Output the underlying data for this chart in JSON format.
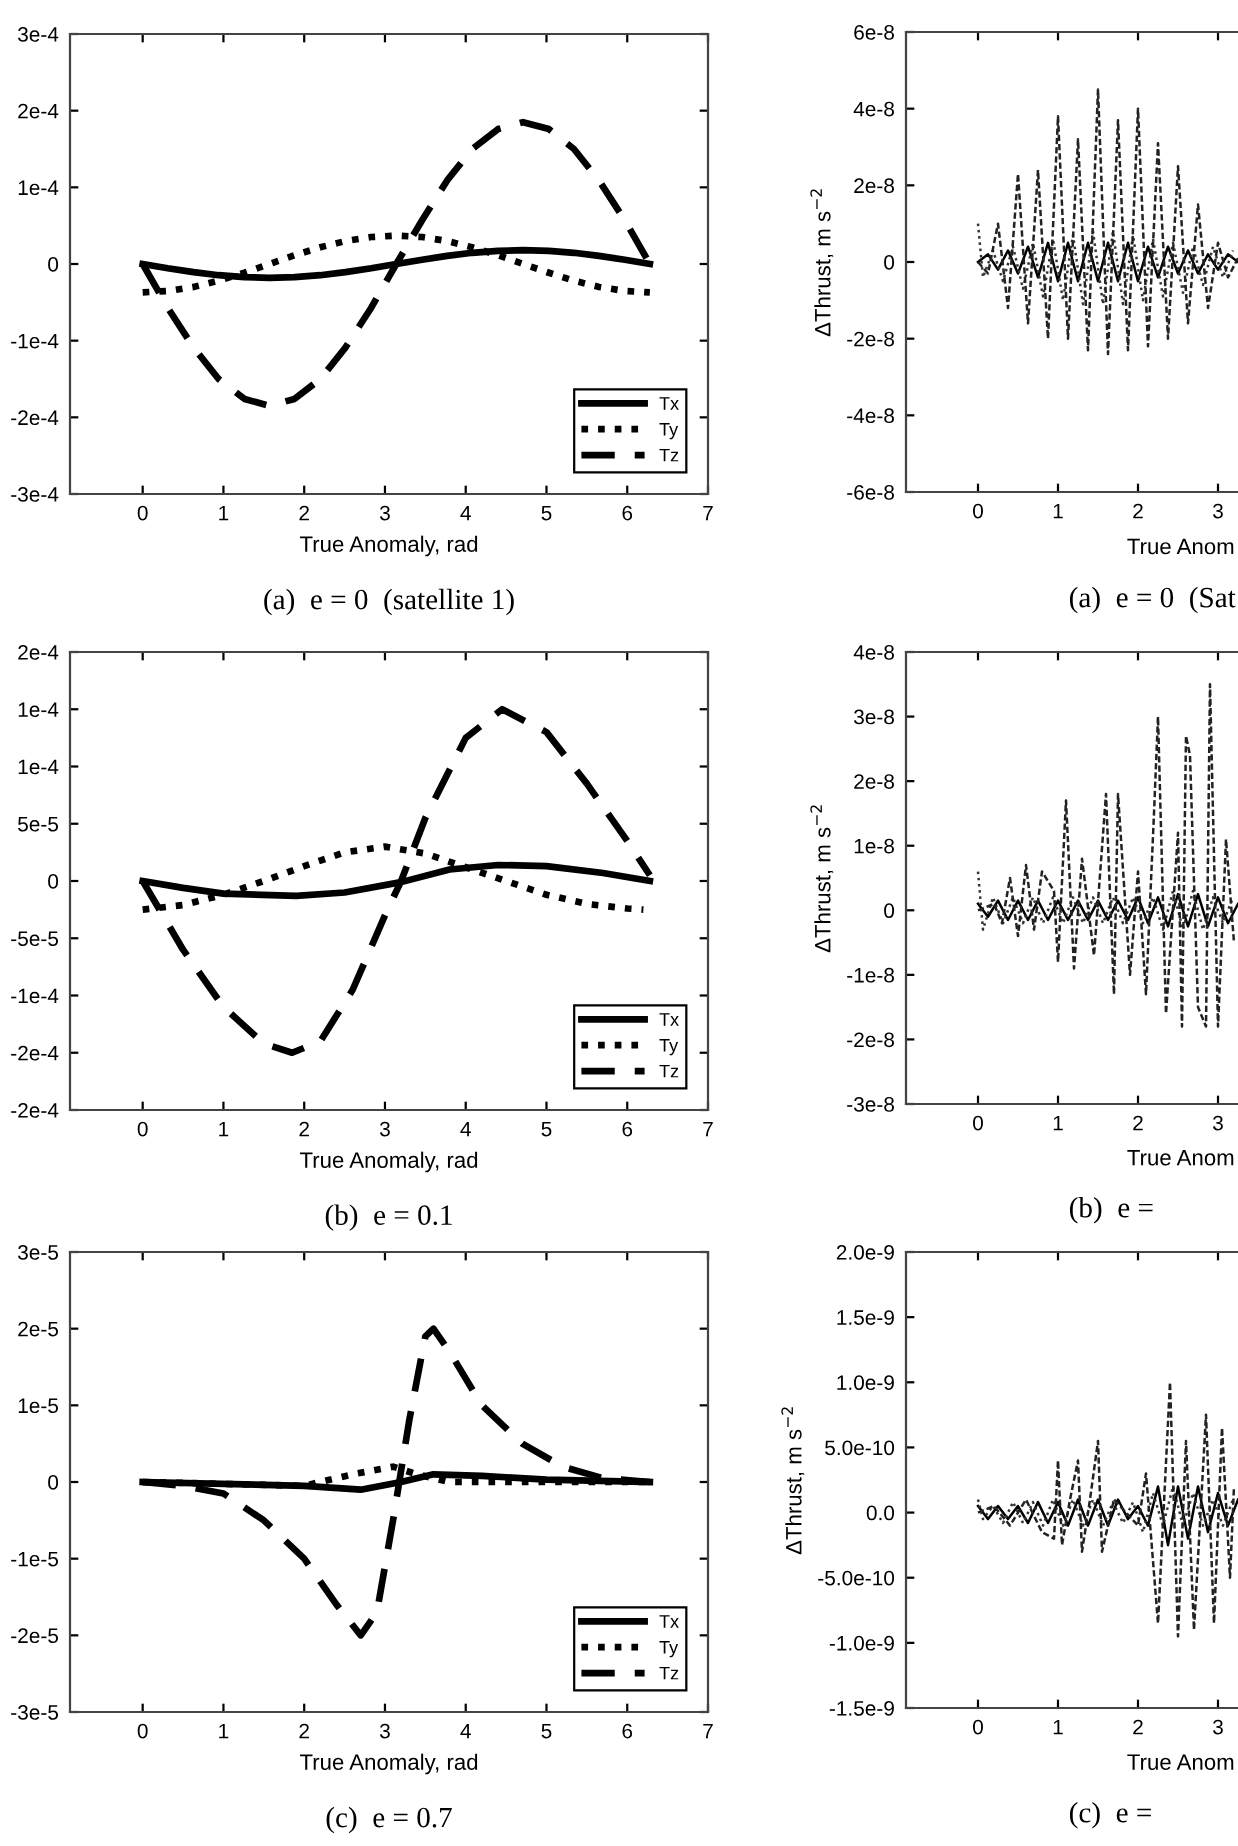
{
  "chart_data": [
    {
      "type": "line",
      "xlabel": "True Anomaly, rad",
      "xlim": [
        -0.9,
        7
      ],
      "xticks": [
        0,
        1,
        2,
        3,
        4,
        5,
        6,
        7
      ],
      "ylim": [
        -0.0003,
        0.0003
      ],
      "yticks": [
        {
          "value": -0.0003,
          "label": "-3e-4"
        },
        {
          "value": -0.0002,
          "label": "-2e-4"
        },
        {
          "value": -0.0001,
          "label": "-1e-4"
        },
        0,
        {
          "value": 0.0001,
          "label": "1e-4"
        },
        {
          "value": 0.0002,
          "label": "2e-4"
        },
        {
          "value": 0.0003,
          "label": "3e-4"
        }
      ],
      "legend": "bottom right",
      "annotations": [
        "(a)  e = 0  (satellite 1)"
      ],
      "series": [
        {
          "name": "Tx",
          "color": "#000000",
          "line_style": "solid",
          "x": [
            0,
            0.31,
            0.63,
            0.94,
            1.26,
            1.57,
            1.88,
            2.2,
            2.51,
            2.83,
            3.14,
            3.46,
            3.77,
            4.08,
            4.4,
            4.71,
            5.03,
            5.34,
            5.65,
            5.97,
            6.28
          ],
          "values": [
            0,
            -5.6e-06,
            -1.06e-05,
            -1.46e-05,
            -1.71e-05,
            -1.8e-05,
            -1.71e-05,
            -1.46e-05,
            -1.06e-05,
            -5.6e-06,
            0,
            5.6e-06,
            1.06e-05,
            1.46e-05,
            1.71e-05,
            1.8e-05,
            1.71e-05,
            1.46e-05,
            1.06e-05,
            5.6e-06,
            0
          ]
        },
        {
          "name": "Ty",
          "color": "#000000",
          "line_style": "dotted",
          "x": [
            0,
            0.31,
            0.63,
            0.94,
            1.26,
            1.57,
            1.88,
            2.2,
            2.51,
            2.83,
            3.14,
            3.46,
            3.77,
            4.08,
            4.4,
            4.71,
            5.03,
            5.34,
            5.65,
            5.97,
            6.28
          ],
          "values": [
            -3.7e-05,
            -3.52e-05,
            -2.99e-05,
            -2.18e-05,
            -1.14e-05,
            0,
            1.14e-05,
            2.18e-05,
            2.99e-05,
            3.52e-05,
            3.7e-05,
            3.52e-05,
            2.99e-05,
            2.18e-05,
            1.14e-05,
            0,
            -1.14e-05,
            -2.18e-05,
            -2.99e-05,
            -3.52e-05,
            -3.7e-05
          ]
        },
        {
          "name": "Tz",
          "color": "#000000",
          "line_style": "dashed",
          "x": [
            0,
            0.31,
            0.63,
            0.94,
            1.26,
            1.57,
            1.88,
            2.2,
            2.51,
            2.83,
            3.14,
            3.46,
            3.77,
            4.08,
            4.4,
            4.71,
            5.03,
            5.34,
            5.65,
            5.97,
            6.28
          ],
          "values": [
            0,
            -5.7e-05,
            -0.000109,
            -0.00015,
            -0.000176,
            -0.000185,
            -0.000176,
            -0.00015,
            -0.000109,
            -5.7e-05,
            0,
            5.7e-05,
            0.000109,
            0.00015,
            0.000176,
            0.000185,
            0.000176,
            0.00015,
            0.000109,
            5.7e-05,
            0
          ]
        }
      ]
    },
    {
      "type": "line",
      "xlabel": "True Anom",
      "ylabel": "ΔThrust, m s$^{−2}$",
      "xlim": [
        -0.9,
        3.25
      ],
      "xticks": [
        0,
        1,
        2,
        3
      ],
      "ylim": [
        -6e-08,
        6e-08
      ],
      "yticks": [
        {
          "value": -6e-08,
          "label": "-6e-8"
        },
        {
          "value": -4e-08,
          "label": "-4e-8"
        },
        {
          "value": -2e-08,
          "label": "-2e-8"
        },
        0,
        {
          "value": 2e-08,
          "label": "2e-8"
        },
        {
          "value": 4e-08,
          "label": "4e-8"
        },
        {
          "value": 6e-08,
          "label": "6e-8"
        }
      ],
      "annotations": [
        "(a)  e = 0  (Sat"
      ],
      "series": [
        {
          "color": "#000000",
          "line_style": "solid",
          "x": [
            0,
            0.125,
            0.25,
            0.375,
            0.5,
            0.625,
            0.75,
            0.875,
            1.0,
            1.125,
            1.25,
            1.375,
            1.5,
            1.625,
            1.75,
            1.875,
            2.0,
            2.125,
            2.25,
            2.375,
            2.5,
            2.625,
            2.75,
            2.875,
            3.0,
            3.125,
            3.25
          ],
          "values": [
            0,
            2e-09,
            -2e-09,
            3e-09,
            -3e-09,
            4e-09,
            -4e-09,
            5e-09,
            -5e-09,
            5e-09,
            -5e-09,
            5e-09,
            -5e-09,
            5e-09,
            -5e-09,
            5e-09,
            -5e-09,
            4e-09,
            -4e-09,
            4e-09,
            -3e-09,
            3e-09,
            -3e-09,
            2e-09,
            -2e-09,
            2e-09,
            0
          ]
        },
        {
          "color": "#333333",
          "line_style": "dotted",
          "x": [
            0,
            0.0625,
            0.1875,
            0.3125,
            0.4375,
            0.5625,
            0.6875,
            0.8125,
            0.9375,
            1.0625,
            1.1875,
            1.3125,
            1.4375,
            1.5625,
            1.6875,
            1.8125,
            1.9375,
            2.0625,
            2.1875,
            2.3125,
            2.4375,
            2.5625,
            2.6875,
            2.8125,
            2.9375,
            3.0625,
            3.1875
          ],
          "values": [
            1e-08,
            -4e-09,
            3e-09,
            -5e-09,
            4e-09,
            -7e-09,
            5e-09,
            -9e-09,
            6e-09,
            -1e-08,
            7e-09,
            -1.1e-08,
            8e-09,
            -1.1e-08,
            8e-09,
            -1.1e-08,
            7e-09,
            -1e-08,
            6e-09,
            -9e-09,
            5e-09,
            -8e-09,
            4e-09,
            -6e-09,
            4e-09,
            -4e-09,
            3e-09
          ]
        },
        {
          "color": "#222222",
          "line_style": "dashed",
          "x": [
            0,
            0.125,
            0.25,
            0.375,
            0.5,
            0.625,
            0.75,
            0.875,
            1.0,
            1.125,
            1.25,
            1.375,
            1.5,
            1.625,
            1.75,
            1.875,
            2.0,
            2.125,
            2.25,
            2.375,
            2.5,
            2.625,
            2.75,
            2.875,
            3.0,
            3.125,
            3.25
          ],
          "values": [
            0,
            -3e-09,
            1e-08,
            -1.2e-08,
            2.3e-08,
            -1.6e-08,
            2.4e-08,
            -2e-08,
            3.8e-08,
            -2e-08,
            3.2e-08,
            -2.3e-08,
            4.5e-08,
            -2.4e-08,
            3.7e-08,
            -2.3e-08,
            4e-08,
            -2.2e-08,
            3.1e-08,
            -2e-08,
            2.5e-08,
            -1.6e-08,
            1.5e-08,
            -1.2e-08,
            5e-09,
            -4e-09,
            1e-09
          ]
        }
      ]
    },
    {
      "type": "line",
      "xlabel": "True Anomaly, rad",
      "xlim": [
        -0.9,
        7
      ],
      "xticks": [
        0,
        1,
        2,
        3,
        4,
        5,
        6,
        7
      ],
      "ylim": [
        -0.0002,
        0.0002
      ],
      "yticks": [
        {
          "value": -0.0002,
          "label": "-2e-4"
        },
        {
          "value": -0.00015,
          "label": "-2e-4"
        },
        {
          "value": -0.0001,
          "label": "-1e-4"
        },
        {
          "value": -5e-05,
          "label": "-5e-5"
        },
        0,
        {
          "value": 5e-05,
          "label": "5e-5"
        },
        {
          "value": 0.0001,
          "label": "1e-4"
        },
        {
          "value": 0.00015,
          "label": "1e-4"
        },
        {
          "value": 0.0002,
          "label": "2e-4"
        }
      ],
      "legend": "bottom right",
      "annotations": [
        "(b)  e = 0.1"
      ],
      "series": [
        {
          "name": "Tx",
          "color": "#000000",
          "line_style": "solid",
          "x": [
            0,
            0.5,
            1.0,
            1.9,
            2.5,
            3.2,
            3.8,
            4.4,
            5.0,
            5.7,
            6.28
          ],
          "values": [
            0,
            -6e-06,
            -1.1e-05,
            -1.3e-05,
            -1e-05,
            -1e-06,
            1e-05,
            1.4e-05,
            1.3e-05,
            7e-06,
            0
          ]
        },
        {
          "name": "Ty",
          "color": "#000000",
          "line_style": "dotted",
          "x": [
            0,
            0.5,
            1.0,
            1.5,
            2.0,
            2.5,
            3.0,
            3.5,
            4.0,
            4.5,
            5.0,
            5.5,
            6.0,
            6.2
          ],
          "values": [
            -2.5e-05,
            -2.1e-05,
            -1.2e-05,
            0,
            1.3e-05,
            2.5e-05,
            3e-05,
            2.4e-05,
            1.2e-05,
            0,
            -1.2e-05,
            -2e-05,
            -2.4e-05,
            -2.5e-05
          ]
        },
        {
          "name": "Tz",
          "color": "#000000",
          "line_style": "dashed",
          "x": [
            0,
            0.5,
            1.0,
            1.5,
            1.85,
            2.2,
            2.6,
            3.0,
            3.2,
            3.5,
            4.0,
            4.45,
            5.0,
            5.5,
            6.0,
            6.28
          ],
          "values": [
            0,
            -6e-05,
            -0.00011,
            -0.000142,
            -0.00015,
            -0.00014,
            -9.5e-05,
            -3e-05,
            0,
            5.5e-05,
            0.000125,
            0.00015,
            0.00013,
            8.5e-05,
            3.5e-05,
            5e-06
          ]
        }
      ]
    },
    {
      "type": "line",
      "xlabel": "True Anom",
      "ylabel": "ΔThrust, m s$^{−2}$",
      "xlim": [
        -0.9,
        3.25
      ],
      "xticks": [
        0,
        1,
        2,
        3
      ],
      "ylim": [
        -3e-08,
        4e-08
      ],
      "yticks": [
        {
          "value": -3e-08,
          "label": "-3e-8"
        },
        {
          "value": -2e-08,
          "label": "-2e-8"
        },
        {
          "value": -1e-08,
          "label": "-1e-8"
        },
        0,
        {
          "value": 1e-08,
          "label": "1e-8"
        },
        {
          "value": 2e-08,
          "label": "2e-8"
        },
        {
          "value": 3e-08,
          "label": "3e-8"
        },
        {
          "value": 4e-08,
          "label": "4e-8"
        }
      ],
      "annotations": [
        "(b)  e ="
      ],
      "series": [
        {
          "color": "#000000",
          "line_style": "solid",
          "x": [
            0,
            0.125,
            0.25,
            0.375,
            0.5,
            0.625,
            0.75,
            0.875,
            1.0,
            1.125,
            1.25,
            1.375,
            1.5,
            1.625,
            1.75,
            1.875,
            2.0,
            2.125,
            2.25,
            2.375,
            2.5,
            2.625,
            2.75,
            2.875,
            3.0,
            3.125,
            3.25
          ],
          "values": [
            1e-09,
            -1e-09,
            1.5e-09,
            -1.5e-09,
            1.5e-09,
            -1.5e-09,
            1.5e-09,
            -1.5e-09,
            1.5e-09,
            -1.5e-09,
            1.5e-09,
            -1.5e-09,
            1.5e-09,
            -1.5e-09,
            1.5e-09,
            -1.5e-09,
            2e-09,
            -2e-09,
            2e-09,
            -2.5e-09,
            2.5e-09,
            -2.5e-09,
            2.5e-09,
            -2.5e-09,
            2e-09,
            -2e-09,
            1e-09
          ]
        },
        {
          "color": "#333333",
          "line_style": "dotted",
          "x": [
            0,
            0.0625,
            0.1875,
            0.3125,
            0.4375,
            0.5625,
            0.6875,
            0.8125,
            0.9375,
            1.0625,
            1.1875,
            1.3125,
            1.4375,
            1.5625,
            1.6875,
            1.8125,
            1.9375,
            2.0625,
            2.1875,
            2.3125,
            2.4375,
            2.5625,
            2.6875,
            2.8125,
            2.9375,
            3.0625,
            3.1875
          ],
          "values": [
            6e-09,
            -3e-09,
            2e-09,
            -2e-09,
            2e-09,
            -2e-09,
            2e-09,
            -2e-09,
            2e-09,
            -2e-09,
            2e-09,
            -2e-09,
            2e-09,
            -2e-09,
            2e-09,
            -2e-09,
            2e-09,
            -2e-09,
            2e-09,
            -3e-09,
            3e-09,
            -3e-09,
            3e-09,
            -3e-09,
            2e-09,
            -2e-09,
            2e-09
          ]
        },
        {
          "color": "#222222",
          "line_style": "dashed",
          "x": [
            0,
            0.2,
            0.3,
            0.4,
            0.5,
            0.6,
            0.7,
            0.8,
            0.95,
            1.0,
            1.1,
            1.2,
            1.3,
            1.45,
            1.6,
            1.7,
            1.75,
            1.9,
            2.0,
            2.1,
            2.2,
            2.25,
            2.35,
            2.5,
            2.55,
            2.6,
            2.65,
            2.75,
            2.85,
            2.9,
            3.0,
            3.1,
            3.2
          ],
          "values": [
            0,
            1e-09,
            -2e-09,
            5e-09,
            -4e-09,
            7e-09,
            -3e-09,
            6e-09,
            3e-09,
            -8e-09,
            1.7e-08,
            -9e-09,
            8e-09,
            -7e-09,
            1.8e-08,
            -1.3e-08,
            1.8e-08,
            -1e-08,
            6e-09,
            -1.3e-08,
            1.5e-08,
            3e-08,
            -1.6e-08,
            1.2e-08,
            -1.8e-08,
            2.7e-08,
            2.4e-08,
            -1.5e-08,
            -1.8e-08,
            3.5e-08,
            -1.8e-08,
            1.1e-08,
            -5e-09
          ]
        }
      ]
    },
    {
      "type": "line",
      "xlabel": "True Anomaly, rad",
      "xlim": [
        -0.9,
        7
      ],
      "xticks": [
        0,
        1,
        2,
        3,
        4,
        5,
        6,
        7
      ],
      "ylim": [
        -3e-05,
        3e-05
      ],
      "yticks": [
        {
          "value": -3e-05,
          "label": "-3e-5"
        },
        {
          "value": -2e-05,
          "label": "-2e-5"
        },
        {
          "value": -1e-05,
          "label": "-1e-5"
        },
        0,
        {
          "value": 1e-05,
          "label": "1e-5"
        },
        {
          "value": 2e-05,
          "label": "2e-5"
        },
        {
          "value": 3e-05,
          "label": "3e-5"
        }
      ],
      "legend": "bottom right",
      "annotations": [
        "(c)  e = 0.7"
      ],
      "series": [
        {
          "name": "Tx",
          "color": "#000000",
          "line_style": "solid",
          "x": [
            0,
            2.0,
            2.7,
            3.2,
            3.6,
            4.2,
            5.0,
            6.28
          ],
          "values": [
            0,
            -5e-07,
            -1e-06,
            0,
            1e-06,
            8e-07,
            3e-07,
            0
          ]
        },
        {
          "name": "Ty",
          "color": "#000000",
          "line_style": "dotted",
          "x": [
            0,
            2.0,
            2.6,
            3.1,
            3.4,
            3.8,
            6.28
          ],
          "values": [
            0,
            -5e-07,
            1e-06,
            2e-06,
            1e-06,
            0,
            0
          ]
        },
        {
          "name": "Tz",
          "color": "#000000",
          "line_style": "dashed",
          "x": [
            0,
            0.5,
            1.0,
            1.5,
            2.0,
            2.4,
            2.7,
            2.9,
            3.1,
            3.3,
            3.5,
            3.6,
            3.8,
            4.2,
            4.7,
            5.2,
            5.7,
            6.28
          ],
          "values": [
            0,
            -5e-07,
            -1.5e-06,
            -5e-06,
            -1e-05,
            -1.6e-05,
            -2e-05,
            -1.7e-05,
            -5e-06,
            8e-06,
            1.9e-05,
            2e-05,
            1.7e-05,
            1e-05,
            5e-06,
            2e-06,
            5e-07,
            0
          ]
        }
      ]
    },
    {
      "type": "line",
      "xlabel": "True Anom",
      "ylabel": "ΔThrust, m s$^{−2}$",
      "xlim": [
        -0.9,
        3.25
      ],
      "xticks": [
        0,
        1,
        2,
        3
      ],
      "ylim": [
        -1.5e-09,
        2e-09
      ],
      "yticks": [
        {
          "value": -1.5e-09,
          "label": "-1.5e-9"
        },
        {
          "value": -1e-09,
          "label": "-1.0e-9"
        },
        {
          "value": -5e-10,
          "label": "-5.0e-10"
        },
        {
          "value": 0,
          "label": "0.0"
        },
        {
          "value": 5e-10,
          "label": "5.0e-10"
        },
        {
          "value": 1e-09,
          "label": "1.0e-9"
        },
        {
          "value": 1.5e-09,
          "label": "1.5e-9"
        },
        {
          "value": 2e-09,
          "label": "2.0e-9"
        }
      ],
      "annotations": [
        "(c)  e ="
      ],
      "series": [
        {
          "color": "#000000",
          "line_style": "solid",
          "x": [
            0,
            0.125,
            0.25,
            0.375,
            0.5,
            0.625,
            0.75,
            0.875,
            1.0,
            1.125,
            1.25,
            1.375,
            1.5,
            1.625,
            1.75,
            1.875,
            2.0,
            2.125,
            2.25,
            2.375,
            2.5,
            2.625,
            2.75,
            2.875,
            3.0,
            3.125,
            3.25
          ],
          "values": [
            5e-11,
            -5e-11,
            5e-11,
            -5e-11,
            5e-11,
            -8e-11,
            8e-11,
            -8e-11,
            8e-11,
            -1e-10,
            1e-10,
            -1e-10,
            1e-10,
            -1e-10,
            1e-10,
            -5e-11,
            5e-11,
            -1e-10,
            2e-10,
            -2.5e-10,
            2e-10,
            -2e-10,
            2e-10,
            -1.5e-10,
            1.5e-10,
            -1e-10,
            1e-10
          ]
        },
        {
          "color": "#333333",
          "line_style": "dotted",
          "x": [
            0,
            0.0625,
            0.1875,
            0.3125,
            0.4375,
            0.5625,
            0.6875,
            0.8125,
            0.9375,
            1.0625,
            1.1875,
            1.3125,
            1.4375,
            1.5625,
            1.6875,
            1.8125,
            1.9375,
            2.0625,
            2.1875,
            2.3125,
            2.4375,
            2.5625,
            2.6875,
            2.8125,
            2.9375,
            3.0625,
            3.1875
          ],
          "values": [
            1e-10,
            -5e-11,
            5e-11,
            -8e-11,
            8e-11,
            -8e-11,
            8e-11,
            -1e-10,
            1e-10,
            -1e-10,
            1e-10,
            -1e-10,
            1e-10,
            -1e-10,
            8e-11,
            -8e-11,
            8e-11,
            -1.5e-10,
            1.5e-10,
            -1e-10,
            2e-10,
            -1e-10,
            1.5e-10,
            -1e-10,
            1e-10,
            -1e-10,
            1e-10
          ]
        },
        {
          "color": "#222222",
          "line_style": "dashed",
          "x": [
            0,
            0.2,
            0.4,
            0.6,
            0.8,
            0.95,
            1.0,
            1.05,
            1.15,
            1.25,
            1.3,
            1.4,
            1.5,
            1.55,
            1.7,
            2.0,
            2.1,
            2.25,
            2.4,
            2.5,
            2.6,
            2.7,
            2.85,
            2.95,
            3.05,
            3.15,
            3.2
          ],
          "values": [
            0,
            5e-11,
            -1e-10,
            1e-10,
            -1.5e-10,
            -2e-10,
            4e-10,
            -2.5e-10,
            1e-10,
            4e-10,
            -3e-10,
            1e-10,
            5.5e-10,
            -3e-10,
            1e-10,
            -1e-10,
            3e-10,
            -8.5e-10,
            1e-09,
            -9.5e-10,
            5.5e-10,
            -9e-10,
            7.5e-10,
            -8.5e-10,
            6.5e-10,
            -5e-10,
            2e-10
          ]
        }
      ]
    }
  ]
}
